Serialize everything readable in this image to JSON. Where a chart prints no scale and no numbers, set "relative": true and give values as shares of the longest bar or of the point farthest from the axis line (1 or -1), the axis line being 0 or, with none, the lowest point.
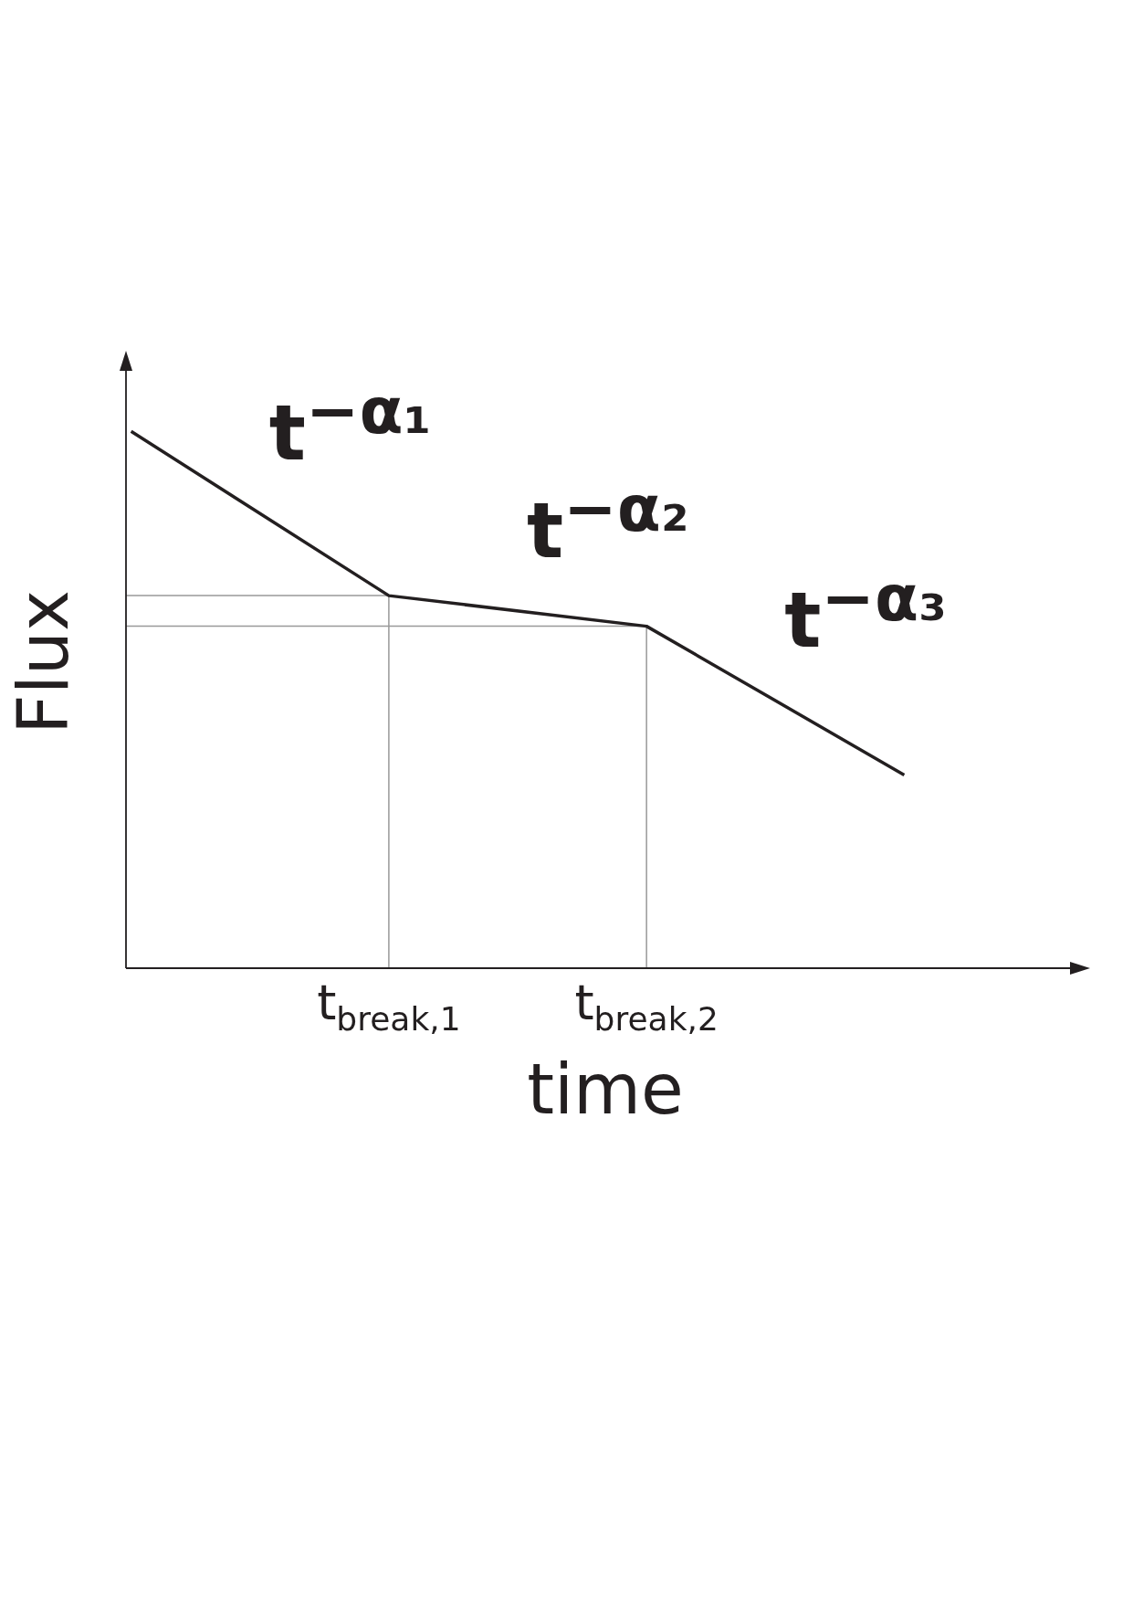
{
  "chart_data": {
    "type": "line",
    "relative": true,
    "xlabel": "time",
    "ylabel": "Flux",
    "marker": "none",
    "line_style": "solid",
    "categories": [
      null,
      "t$_{break,1}$",
      "t$_{break,2}$",
      null
    ],
    "series": [
      {
        "color": "#231f20",
        "values": [
          1,
          0.694,
          0.637,
          0.36
        ]
      }
    ],
    "ref_lines": [
      {
        "axis": "x",
        "value": "t$_{break,1}$",
        "color": "#999999"
      },
      {
        "axis": "x",
        "value": "t$_{break,2}$",
        "color": "#999999"
      },
      {
        "axis": "y",
        "value": 0.694,
        "color": "#999999"
      },
      {
        "axis": "y",
        "value": 0.637,
        "color": "#999999"
      }
    ],
    "annotations": [
      "t$^{−α₁}$",
      "t$^{−α₂}$",
      "t$^{−α₃}$"
    ]
  }
}
